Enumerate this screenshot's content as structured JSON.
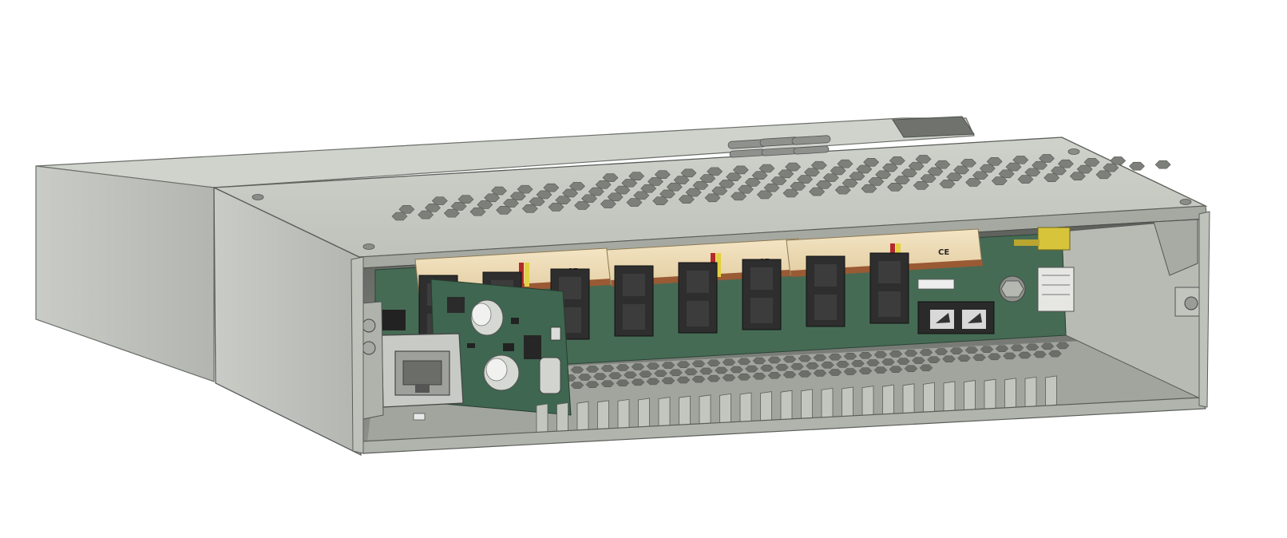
{
  "scene": {
    "subject": "enclosure-render",
    "colors": {
      "background": "#ffffff",
      "enclosure": "#c4c7c0",
      "enclosure_dark": "#8d918a",
      "enclosure_edge": "#5a5d58",
      "pcb": "#3f6650",
      "relay_body": "#efdcb6",
      "connector": "#2f2f2f",
      "accent_yellow": "#d8c43a",
      "accent_red": "#b32a2a",
      "copper": "#9a5a34"
    },
    "relays": [
      {
        "mark": "CE"
      },
      {
        "mark": "CE"
      },
      {
        "mark": "CE"
      }
    ],
    "vent_holes_top": 120,
    "vent_holes_bottom": 110
  }
}
